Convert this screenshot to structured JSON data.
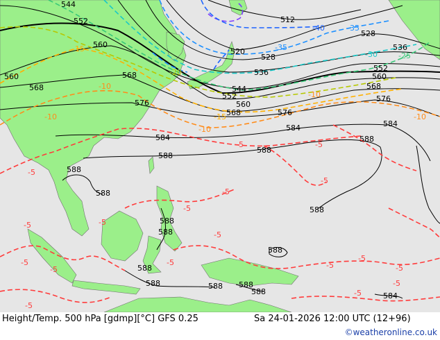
{
  "footer": {
    "title": "Height/Temp. 500 hPa [gdmp][°C] GFS 0.25",
    "datetime": "Sa 24-01-2026 12:00 UTC (12+96)",
    "credit": "©weatheronline.co.uk"
  },
  "colors": {
    "sea": "#e6e6e6",
    "land": "#9bef8a",
    "height_contour": "#000000",
    "temp_neg5": "#ff3b3b",
    "temp_neg10": "#ff8c1a",
    "temp_neg15": "#ffb000",
    "temp_neg20": "#b6c800",
    "temp_neg25": "#38c878",
    "temp_neg30": "#18c8c8",
    "temp_neg35": "#1e90ff",
    "temp_neg40": "#1e64ff",
    "temp_neg45": "#7b3cff"
  },
  "height_labels": [
    "544",
    "552",
    "560",
    "568",
    "576",
    "584",
    "588",
    "512",
    "520",
    "528",
    "536",
    "544",
    "552",
    "560",
    "568",
    "576",
    "584",
    "588",
    "528",
    "536",
    "552",
    "560",
    "568",
    "576",
    "584",
    "588",
    "588",
    "588",
    "588",
    "588",
    "588",
    "588",
    "588",
    "588",
    "588",
    "588",
    "588",
    "584",
    "568",
    "560"
  ],
  "temp_labels": [
    "-40",
    "-35",
    "-35",
    "-30",
    "-25",
    "-20",
    "-15",
    "-15",
    "-10",
    "-10",
    "-10",
    "-10",
    "-10",
    "-5",
    "-5",
    "-5",
    "-5",
    "-5",
    "-5",
    "-5",
    "-5",
    "-5",
    "-5",
    "-5",
    "-5",
    "-5",
    "-5",
    "-5",
    "-5",
    "-5",
    "-5"
  ]
}
